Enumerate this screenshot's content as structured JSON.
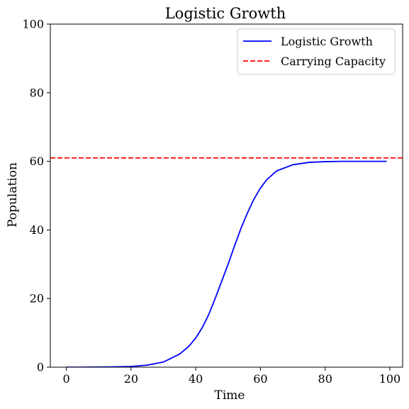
{
  "chart_data": {
    "type": "line",
    "title": "Logistic Growth",
    "xlabel": "Time",
    "ylabel": "Population",
    "xlim": [
      -4.95,
      103.95
    ],
    "ylim": [
      0,
      100
    ],
    "xticks": [
      0,
      20,
      40,
      60,
      80,
      100
    ],
    "yticks": [
      0,
      20,
      40,
      60,
      80,
      100
    ],
    "grid": false,
    "legend_position": "top-right",
    "series": [
      {
        "name": "Logistic Growth",
        "color": "#0000ff",
        "style": "solid",
        "x": [
          0,
          5,
          10,
          15,
          20,
          25,
          30,
          35,
          38,
          40,
          42,
          44,
          46,
          48,
          50,
          52,
          54,
          56,
          58,
          60,
          62,
          65,
          70,
          75,
          80,
          85,
          90,
          95,
          99
        ],
        "y": [
          0.0,
          0.0,
          0.05,
          0.1,
          0.2,
          0.6,
          1.5,
          3.8,
          6.2,
          8.5,
          11.5,
          15.3,
          20.0,
          25.0,
          30.0,
          35.4,
          40.5,
          45.0,
          49.0,
          52.2,
          54.7,
          57.2,
          59.0,
          59.7,
          59.9,
          60.0,
          60.0,
          60.0,
          60.0
        ]
      },
      {
        "name": "Carrying Capacity",
        "color": "#ff0000",
        "style": "dashed",
        "y_constant": 61
      }
    ]
  }
}
